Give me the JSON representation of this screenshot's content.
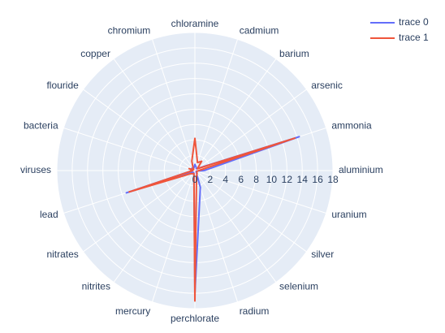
{
  "chart_data": {
    "type": "radar",
    "title": "",
    "categories": [
      "aluminium",
      "ammonia",
      "arsenic",
      "barium",
      "cadmium",
      "chloramine",
      "chromium",
      "copper",
      "flouride",
      "bacteria",
      "viruses",
      "lead",
      "nitrates",
      "nitrites",
      "mercury",
      "perchlorate",
      "radium",
      "selenium",
      "silver",
      "uranium"
    ],
    "radial_range": [
      0,
      18
    ],
    "radial_ticks": [
      0,
      2,
      4,
      6,
      8,
      10,
      12,
      14,
      16,
      18
    ],
    "grid": true,
    "legend_position": "top-right",
    "series": [
      {
        "name": "trace 0",
        "color": "#636efa",
        "values": [
          1.2,
          14.3,
          0.5,
          0.3,
          0.5,
          0.8,
          0.4,
          0.3,
          0.5,
          0.4,
          0.3,
          9.4,
          0.4,
          0.3,
          0.4,
          16.0,
          2.3,
          0.3,
          0.2,
          0.2
        ]
      },
      {
        "name": "trace 1",
        "color": "#ef553b",
        "values": [
          0.5,
          13.7,
          0.4,
          1.5,
          1.1,
          4.2,
          1.3,
          0.4,
          0.2,
          0.8,
          0.3,
          9.0,
          0.7,
          0.5,
          0.4,
          17.0,
          0.7,
          0.5,
          0.3,
          0.3
        ]
      }
    ]
  }
}
